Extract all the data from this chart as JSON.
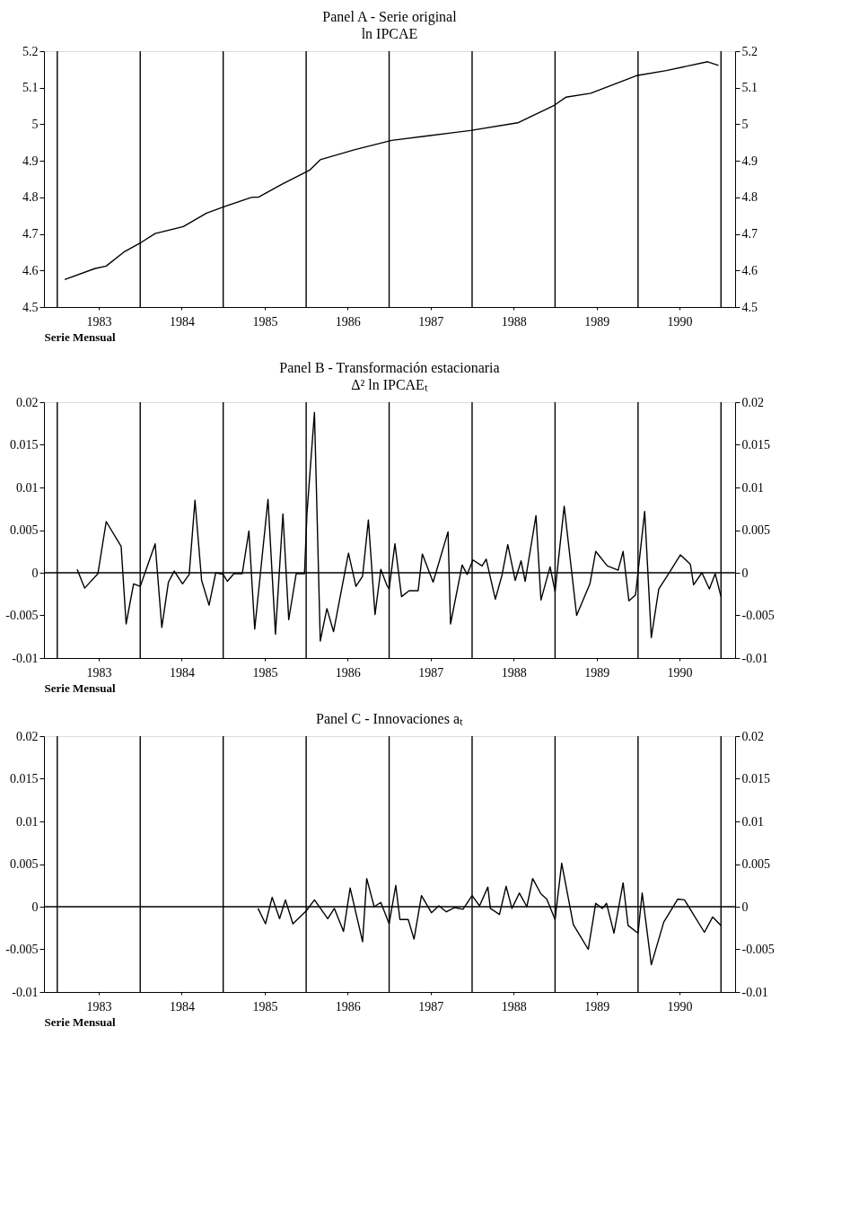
{
  "chart_data": [
    {
      "type": "line",
      "title": "Panel A - Serie original",
      "subtitle": "ln IPCAE",
      "xlabel": "Serie Mensual",
      "x": [
        1982.59,
        1982.95,
        1983.09,
        1983.3,
        1983.52,
        1983.68,
        1984.02,
        1984.3,
        1984.53,
        1984.84,
        1984.93,
        1985.21,
        1985.54,
        1985.67,
        1986.08,
        1986.53,
        1986.95,
        1987.48,
        1988.05,
        1988.49,
        1988.63,
        1988.93,
        1989.48,
        1989.84,
        1990.34,
        1990.47
      ],
      "series": [
        {
          "color": "#000000",
          "values": [
            4.575,
            4.605,
            4.612,
            4.65,
            4.678,
            4.701,
            4.72,
            4.757,
            4.776,
            4.8,
            4.801,
            4.836,
            4.874,
            4.903,
            4.93,
            4.956,
            4.968,
            4.983,
            5.004,
            5.052,
            5.074,
            5.085,
            5.133,
            5.147,
            5.171,
            5.161
          ]
        }
      ],
      "xlim": [
        1982.34,
        1990.67
      ],
      "xticks": [
        1983,
        1984,
        1985,
        1986,
        1987,
        1988,
        1989,
        1990
      ],
      "ylim": [
        4.5,
        5.2
      ],
      "yticks": [
        4.5,
        4.6,
        4.7,
        4.8,
        4.9,
        5,
        5.1,
        5.2
      ],
      "y2lim": [
        4.5,
        5.2
      ],
      "y2ticks": [
        4.5,
        4.6,
        4.7,
        4.8,
        4.9,
        5,
        5.1,
        5.2
      ],
      "ref_lines": [
        {
          "axis": "x",
          "value": 1982.5
        },
        {
          "axis": "x",
          "value": 1983.5
        },
        {
          "axis": "x",
          "value": 1984.5
        },
        {
          "axis": "x",
          "value": 1985.5
        },
        {
          "axis": "x",
          "value": 1986.5
        },
        {
          "axis": "x",
          "value": 1987.5
        },
        {
          "axis": "x",
          "value": 1988.5
        },
        {
          "axis": "x",
          "value": 1989.5
        },
        {
          "axis": "x",
          "value": 1990.5
        }
      ]
    },
    {
      "type": "line",
      "title": "Panel B - Transformación estacionaria",
      "subtitle": "Δ² ln IPCAEₜ",
      "xlabel": "Serie Mensual",
      "x": [
        1982.74,
        1982.83,
        1982.99,
        1983.09,
        1983.27,
        1983.33,
        1983.42,
        1983.5,
        1983.68,
        1983.76,
        1983.84,
        1983.91,
        1984.01,
        1984.09,
        1984.16,
        1984.24,
        1984.33,
        1984.41,
        1984.5,
        1984.55,
        1984.63,
        1984.73,
        1984.81,
        1984.88,
        1985.04,
        1985.13,
        1985.22,
        1985.29,
        1985.38,
        1985.48,
        1985.51,
        1985.6,
        1985.67,
        1985.75,
        1985.83,
        1986.01,
        1986.1,
        1986.18,
        1986.25,
        1986.33,
        1986.4,
        1986.47,
        1986.5,
        1986.57,
        1986.65,
        1986.74,
        1986.85,
        1986.9,
        1987.03,
        1987.21,
        1987.24,
        1987.38,
        1987.44,
        1987.51,
        1987.62,
        1987.67,
        1987.78,
        1987.86,
        1987.93,
        1988.02,
        1988.09,
        1988.14,
        1988.27,
        1988.33,
        1988.44,
        1988.5,
        1988.61,
        1988.76,
        1988.92,
        1988.99,
        1989.13,
        1989.26,
        1989.32,
        1989.39,
        1989.47,
        1989.58,
        1989.66,
        1989.75,
        1989.87,
        1990.01,
        1990.13,
        1990.17,
        1990.27,
        1990.36,
        1990.43,
        1990.5
      ],
      "series": [
        {
          "color": "#000000",
          "values": [
            0.0004,
            -0.0018,
            -0.0001,
            0.006,
            0.0031,
            -0.006,
            -0.0013,
            -0.0016,
            0.0034,
            -0.0064,
            -0.0011,
            0.0002,
            -0.0013,
            -0.0002,
            0.0085,
            -0.0009,
            -0.0038,
            0,
            -0.0002,
            -0.001,
            -0.0001,
            -0.0001,
            0.0049,
            -0.0066,
            0.0086,
            -0.0072,
            0.0069,
            -0.0055,
            -0.0001,
            -0.0001,
            0.007,
            0.0188,
            -0.008,
            -0.0042,
            -0.0069,
            0.0023,
            -0.0016,
            -0.0004,
            0.0062,
            -0.0049,
            0.0004,
            -0.0014,
            -0.0019,
            0.0034,
            -0.0028,
            -0.0021,
            -0.0021,
            0.0022,
            -0.0011,
            0.0048,
            -0.006,
            0.0009,
            -0.0002,
            0.0015,
            0.0008,
            0.0016,
            -0.0031,
            -0.0003,
            0.0033,
            -0.0009,
            0.0014,
            -0.001,
            0.0067,
            -0.0032,
            0.0007,
            -0.0022,
            0.0078,
            -0.005,
            -0.0013,
            0.0025,
            0.0008,
            0.0003,
            0.0025,
            -0.0033,
            -0.0026,
            0.0072,
            -0.0076,
            -0.0019,
            -0.0001,
            0.0021,
            0.001,
            -0.0014,
            0,
            -0.0019,
            -0.0001,
            -0.0028
          ]
        }
      ],
      "xlim": [
        1982.34,
        1990.67
      ],
      "xticks": [
        1983,
        1984,
        1985,
        1986,
        1987,
        1988,
        1989,
        1990
      ],
      "ylim": [
        -0.01,
        0.02
      ],
      "yticks": [
        -0.01,
        -0.005,
        0,
        0.005,
        0.01,
        0.015,
        0.02
      ],
      "y2lim": [
        -0.01,
        0.02
      ],
      "y2ticks": [
        -0.01,
        -0.005,
        0,
        0.005,
        0.01,
        0.015,
        0.02
      ],
      "ref_lines": [
        {
          "axis": "y",
          "value": 0
        },
        {
          "axis": "x",
          "value": 1982.5
        },
        {
          "axis": "x",
          "value": 1983.5
        },
        {
          "axis": "x",
          "value": 1984.5
        },
        {
          "axis": "x",
          "value": 1985.5
        },
        {
          "axis": "x",
          "value": 1986.5
        },
        {
          "axis": "x",
          "value": 1987.5
        },
        {
          "axis": "x",
          "value": 1988.5
        },
        {
          "axis": "x",
          "value": 1989.5
        },
        {
          "axis": "x",
          "value": 1990.5
        }
      ]
    },
    {
      "type": "line",
      "title": "Panel C - Innovaciones aₜ",
      "xlabel": "Serie Mensual",
      "x": [
        1984.92,
        1985.01,
        1985.09,
        1985.18,
        1985.25,
        1985.34,
        1985.5,
        1985.6,
        1985.76,
        1985.84,
        1985.95,
        1986.03,
        1986.18,
        1986.23,
        1986.32,
        1986.4,
        1986.5,
        1986.58,
        1986.63,
        1986.73,
        1986.8,
        1986.89,
        1987.01,
        1987.1,
        1987.19,
        1987.29,
        1987.39,
        1987.5,
        1987.59,
        1987.69,
        1987.72,
        1987.83,
        1987.91,
        1987.98,
        1988.07,
        1988.16,
        1988.23,
        1988.33,
        1988.4,
        1988.5,
        1988.58,
        1988.72,
        1988.9,
        1988.99,
        1989.07,
        1989.12,
        1989.21,
        1989.32,
        1989.38,
        1989.5,
        1989.55,
        1989.66,
        1989.81,
        1989.98,
        1990.06,
        1990.3,
        1990.4,
        1990.5
      ],
      "series": [
        {
          "color": "#000000",
          "values": [
            -0.0002,
            -0.002,
            0.0011,
            -0.0014,
            0.0008,
            -0.002,
            -0.0005,
            0.0008,
            -0.0014,
            -0.0002,
            -0.0029,
            0.0022,
            -0.0041,
            0.0033,
            0,
            0.0005,
            -0.002,
            0.0025,
            -0.0015,
            -0.0015,
            -0.0038,
            0.0013,
            -0.0007,
            0.0001,
            -0.0006,
            -0.0001,
            -0.0003,
            0.0013,
            0.0001,
            0.0023,
            -0.0002,
            -0.0009,
            0.0024,
            -0.0002,
            0.0016,
            0,
            0.0033,
            0.0015,
            0.0009,
            -0.0015,
            0.0051,
            -0.0021,
            -0.005,
            0.0004,
            -0.0002,
            0.0004,
            -0.0031,
            0.0028,
            -0.0022,
            -0.0031,
            0.0016,
            -0.0068,
            -0.0018,
            0.0009,
            0.0008,
            -0.003,
            -0.0012,
            -0.0022
          ]
        }
      ],
      "xlim": [
        1982.34,
        1990.67
      ],
      "xticks": [
        1983,
        1984,
        1985,
        1986,
        1987,
        1988,
        1989,
        1990
      ],
      "ylim": [
        -0.01,
        0.02
      ],
      "yticks": [
        -0.01,
        -0.005,
        0,
        0.005,
        0.01,
        0.015,
        0.02
      ],
      "y2lim": [
        -0.01,
        0.02
      ],
      "y2ticks": [
        -0.01,
        -0.005,
        0,
        0.005,
        0.01,
        0.015,
        0.02
      ],
      "ref_lines": [
        {
          "axis": "y",
          "value": 0
        },
        {
          "axis": "x",
          "value": 1982.5
        },
        {
          "axis": "x",
          "value": 1983.5
        },
        {
          "axis": "x",
          "value": 1984.5
        },
        {
          "axis": "x",
          "value": 1985.5
        },
        {
          "axis": "x",
          "value": 1986.5
        },
        {
          "axis": "x",
          "value": 1987.5
        },
        {
          "axis": "x",
          "value": 1988.5
        },
        {
          "axis": "x",
          "value": 1989.5
        },
        {
          "axis": "x",
          "value": 1990.5
        }
      ]
    }
  ]
}
